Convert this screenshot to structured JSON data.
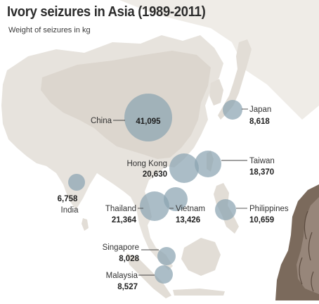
{
  "title": "Ivory seizures in Asia (1989-2011)",
  "subtitle": "Weight of seizures in kg",
  "colors": {
    "land": "#e7e3dd",
    "land_dark": "#d9d3cb",
    "bubble": "#8aa4b1",
    "leader": "#444444",
    "elephant": "#7b6a5c"
  },
  "seizures": [
    {
      "id": "china",
      "name": "China",
      "value": "41,095",
      "kg": 41095
    },
    {
      "id": "japan",
      "name": "Japan",
      "value": "8,618",
      "kg": 8618
    },
    {
      "id": "hongkong",
      "name": "Hong Kong",
      "value": "20,630",
      "kg": 20630
    },
    {
      "id": "taiwan",
      "name": "Taiwan",
      "value": "18,370",
      "kg": 18370
    },
    {
      "id": "india",
      "name": "India",
      "value": "6,758",
      "kg": 6758
    },
    {
      "id": "thailand",
      "name": "Thailand",
      "value": "21,364",
      "kg": 21364
    },
    {
      "id": "vietnam",
      "name": "Vietnam",
      "value": "13,426",
      "kg": 13426
    },
    {
      "id": "philippines",
      "name": "Philippines",
      "value": "10,659",
      "kg": 10659
    },
    {
      "id": "singapore",
      "name": "Singapore",
      "value": "8,028",
      "kg": 8028
    },
    {
      "id": "malaysia",
      "name": "Malaysia",
      "value": "8,527",
      "kg": 8527
    }
  ]
}
